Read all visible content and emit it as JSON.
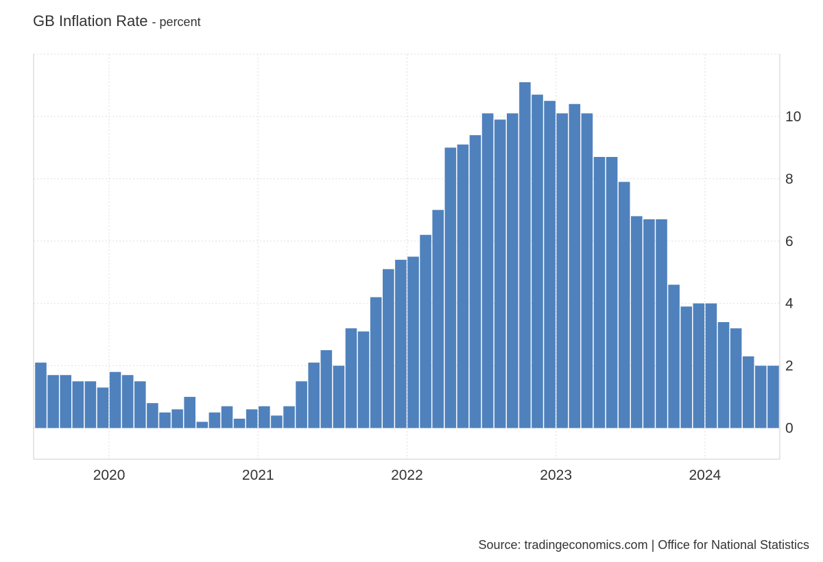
{
  "chart_data": {
    "type": "bar",
    "title": "GB Inflation Rate",
    "subtitle": "- percent",
    "source": "Source: tradingeconomics.com | Office for National Statistics",
    "xlabel": "",
    "ylabel": "",
    "ylim": [
      -1,
      12
    ],
    "yticks": [
      0,
      2,
      4,
      6,
      8,
      10
    ],
    "xticks": [
      "2020",
      "2021",
      "2022",
      "2023",
      "2024"
    ],
    "x_start": "2019-07",
    "grid": true,
    "y_axis_side": "right",
    "bar_color": "#4f81bd",
    "values": [
      2.1,
      1.7,
      1.7,
      1.5,
      1.5,
      1.3,
      1.8,
      1.7,
      1.5,
      0.8,
      0.5,
      0.6,
      1.0,
      0.2,
      0.5,
      0.7,
      0.3,
      0.6,
      0.7,
      0.4,
      0.7,
      1.5,
      2.1,
      2.5,
      2.0,
      3.2,
      3.1,
      4.2,
      5.1,
      5.4,
      5.5,
      6.2,
      7.0,
      9.0,
      9.1,
      9.4,
      10.1,
      9.9,
      10.1,
      11.1,
      10.7,
      10.5,
      10.1,
      10.4,
      10.1,
      8.7,
      8.7,
      7.9,
      6.8,
      6.7,
      6.7,
      4.6,
      3.9,
      4.0,
      4.0,
      3.4,
      3.2,
      2.3,
      2.0,
      2.0
    ]
  }
}
